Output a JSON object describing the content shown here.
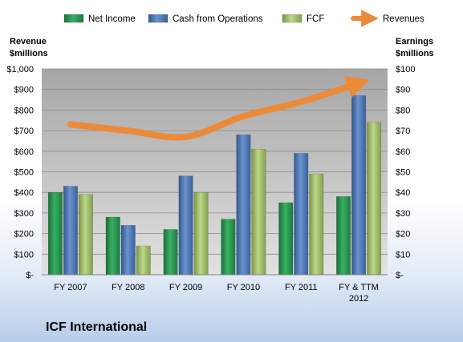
{
  "chart_data": {
    "type": "bar",
    "title": "ICF International",
    "categories": [
      "FY 2007",
      "FY 2008",
      "FY 2009",
      "FY 2010",
      "FY 2011",
      "FY & TTM 2012"
    ],
    "series": [
      {
        "name": "Net Income",
        "axis": "right",
        "color": "#2e9e55",
        "values": [
          40,
          28,
          22,
          27,
          35,
          38
        ]
      },
      {
        "name": "Cash from Operations",
        "axis": "right",
        "color": "#4f79b7",
        "values": [
          43,
          24,
          48,
          68,
          59,
          87
        ]
      },
      {
        "name": "FCF",
        "axis": "right",
        "color": "#a4c26b",
        "values": [
          39,
          14,
          40,
          61,
          49,
          74
        ]
      },
      {
        "name": "Revenues",
        "type": "line",
        "axis": "left",
        "color": "#ec8a3a",
        "values": [
          730,
          700,
          670,
          770,
          840,
          930
        ]
      }
    ],
    "left_axis": {
      "label_line1": "Revenue",
      "label_line2": "$millions",
      "ylim": [
        0,
        1000
      ],
      "ticks": [
        "$-",
        "$100",
        "$200",
        "$300",
        "$400",
        "$500",
        "$600",
        "$700",
        "$800",
        "$900",
        "$1,000"
      ]
    },
    "right_axis": {
      "label_line1": "Earnings",
      "label_line2": "$millions",
      "ylim": [
        0,
        100
      ],
      "ticks": [
        "$-",
        "$10",
        "$20",
        "$30",
        "$40",
        "$50",
        "$60",
        "$70",
        "$80",
        "$90",
        "$100"
      ]
    },
    "x_tick_labels": [
      [
        "FY 2007"
      ],
      [
        "FY 2008"
      ],
      [
        "FY 2009"
      ],
      [
        "FY 2010"
      ],
      [
        "FY 2011"
      ],
      [
        "FY & TTM",
        "2012"
      ]
    ],
    "legend_position": "top",
    "grid": true
  }
}
